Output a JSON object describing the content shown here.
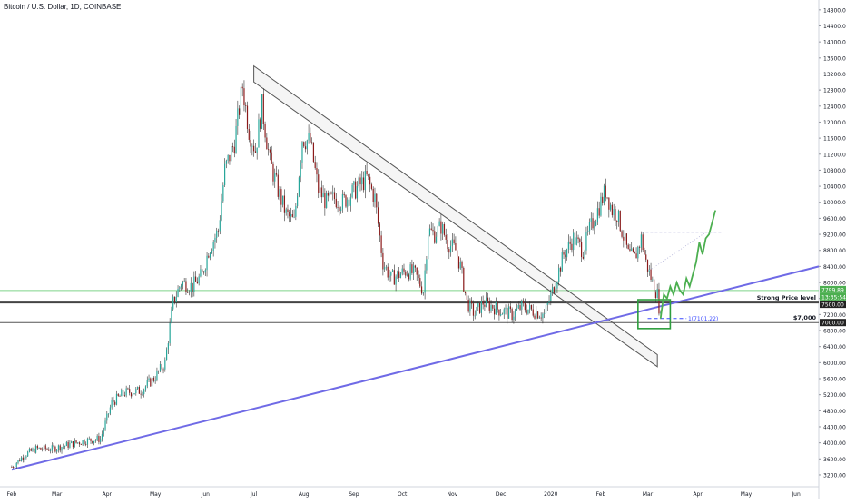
{
  "header": {
    "title": "Bitcoin / U.S. Dollar, 1D, COINBASE"
  },
  "chart_data": {
    "type": "candlestick",
    "title": "Bitcoin / U.S. Dollar, 1D, COINBASE",
    "y_tick_labels": [
      "14800.00",
      "14400.00",
      "14000.00",
      "13600.00",
      "13200.00",
      "12800.00",
      "12400.00",
      "12000.00",
      "11600.00",
      "11200.00",
      "10800.00",
      "10400.00",
      "10000.00",
      "9600.00",
      "9200.00",
      "8800.00",
      "8400.00",
      "8000.00",
      "7600.00",
      "7200.00",
      "6800.00",
      "6400.00",
      "6000.00",
      "5600.00",
      "5200.00",
      "4800.00",
      "4400.00",
      "4000.00",
      "3600.00",
      "3200.00"
    ],
    "ylim": [
      2950,
      15000
    ],
    "x_tick_labels": [
      {
        "label": "Feb",
        "day": 0
      },
      {
        "label": "Mar",
        "day": 28
      },
      {
        "label": "Apr",
        "day": 59
      },
      {
        "label": "May",
        "day": 89
      },
      {
        "label": "Jun",
        "day": 120
      },
      {
        "label": "Jul",
        "day": 150
      },
      {
        "label": "Aug",
        "day": 181
      },
      {
        "label": "Sep",
        "day": 212
      },
      {
        "label": "Oct",
        "day": 242
      },
      {
        "label": "Nov",
        "day": 273
      },
      {
        "label": "Dec",
        "day": 303
      },
      {
        "label": "2020",
        "day": 334
      },
      {
        "label": "Feb",
        "day": 365
      },
      {
        "label": "Mar",
        "day": 394
      },
      {
        "label": "Apr",
        "day": 425
      },
      {
        "label": "May",
        "day": 455
      },
      {
        "label": "Jun",
        "day": 486
      }
    ],
    "xlim": [
      -5,
      500
    ],
    "price_path": [
      [
        0,
        3400
      ],
      [
        8,
        3700
      ],
      [
        15,
        3850
      ],
      [
        25,
        3850
      ],
      [
        35,
        3950
      ],
      [
        45,
        4050
      ],
      [
        55,
        4100
      ],
      [
        62,
        5000
      ],
      [
        70,
        5250
      ],
      [
        80,
        5300
      ],
      [
        88,
        5600
      ],
      [
        95,
        6000
      ],
      [
        100,
        7500
      ],
      [
        105,
        8000
      ],
      [
        112,
        7900
      ],
      [
        118,
        8200
      ],
      [
        122,
        8800
      ],
      [
        128,
        9300
      ],
      [
        132,
        10800
      ],
      [
        138,
        11500
      ],
      [
        143,
        12900
      ],
      [
        147,
        11800
      ],
      [
        151,
        11300
      ],
      [
        155,
        12400
      ],
      [
        160,
        11000
      ],
      [
        165,
        10300
      ],
      [
        170,
        9700
      ],
      [
        175,
        9500
      ],
      [
        180,
        11600
      ],
      [
        185,
        11500
      ],
      [
        190,
        10300
      ],
      [
        195,
        10000
      ],
      [
        200,
        10100
      ],
      [
        205,
        10000
      ],
      [
        210,
        10200
      ],
      [
        215,
        10400
      ],
      [
        220,
        10600
      ],
      [
        225,
        10100
      ],
      [
        230,
        8500
      ],
      [
        235,
        8100
      ],
      [
        240,
        8200
      ],
      [
        245,
        8300
      ],
      [
        250,
        8200
      ],
      [
        255,
        7800
      ],
      [
        258,
        9300
      ],
      [
        262,
        9200
      ],
      [
        266,
        9400
      ],
      [
        270,
        9000
      ],
      [
        275,
        8800
      ],
      [
        278,
        8400
      ],
      [
        282,
        7500
      ],
      [
        287,
        7200
      ],
      [
        292,
        7500
      ],
      [
        298,
        7400
      ],
      [
        303,
        7300
      ],
      [
        310,
        7200
      ],
      [
        316,
        7400
      ],
      [
        322,
        7300
      ],
      [
        330,
        7200
      ],
      [
        336,
        7900
      ],
      [
        342,
        8700
      ],
      [
        348,
        9100
      ],
      [
        354,
        8800
      ],
      [
        358,
        9300
      ],
      [
        363,
        9800
      ],
      [
        368,
        10300
      ],
      [
        372,
        9800
      ],
      [
        375,
        9700
      ],
      [
        378,
        9300
      ],
      [
        382,
        8700
      ],
      [
        386,
        8600
      ],
      [
        390,
        9100
      ],
      [
        393,
        8500
      ],
      [
        397,
        8000
      ],
      [
        400,
        7700
      ],
      [
        402,
        7100
      ]
    ],
    "projection": [
      [
        402,
        7100
      ],
      [
        404,
        7700
      ],
      [
        406,
        7600
      ],
      [
        408,
        7900
      ],
      [
        410,
        7700
      ],
      [
        412,
        8000
      ],
      [
        414,
        7800
      ],
      [
        416,
        7700
      ],
      [
        418,
        8100
      ],
      [
        420,
        7900
      ],
      [
        422,
        8200
      ],
      [
        424,
        8500
      ],
      [
        426,
        9000
      ],
      [
        428,
        8700
      ],
      [
        430,
        9100
      ],
      [
        432,
        9200
      ],
      [
        434,
        9500
      ],
      [
        436,
        9800
      ]
    ],
    "annotations": {
      "strong_price_level": {
        "label": "Strong Price level",
        "value": 7500
      },
      "level_7000": {
        "label": "$7,000",
        "value": 7000
      },
      "green_level": 7799.89,
      "fib_label": "1(7101.22)",
      "fib_value": 7101.22,
      "tag_green": "7799.89",
      "tag_timer": "13:35:54",
      "tag_strong": "7500.00",
      "tag_7000": "7000.00"
    },
    "rising_trendline": {
      "from": [
        0,
        3330
      ],
      "to": [
        500,
        8400
      ]
    },
    "falling_channel": {
      "upper_from": [
        150,
        13400
      ],
      "upper_to": [
        400,
        6200
      ],
      "lower_from": [
        150,
        13000
      ],
      "lower_to": [
        400,
        5900
      ]
    },
    "green_box": {
      "day_from": 388,
      "day_to": 408,
      "price_from": 6850,
      "price_to": 7570
    },
    "colors": {
      "up": "#26a69a",
      "down": "#8b1a1a",
      "projection": "#4caf50",
      "trendline": "#6f6ae6",
      "channel": "#555555",
      "box": "#2e9e3e",
      "fib": "#3949ff"
    }
  }
}
